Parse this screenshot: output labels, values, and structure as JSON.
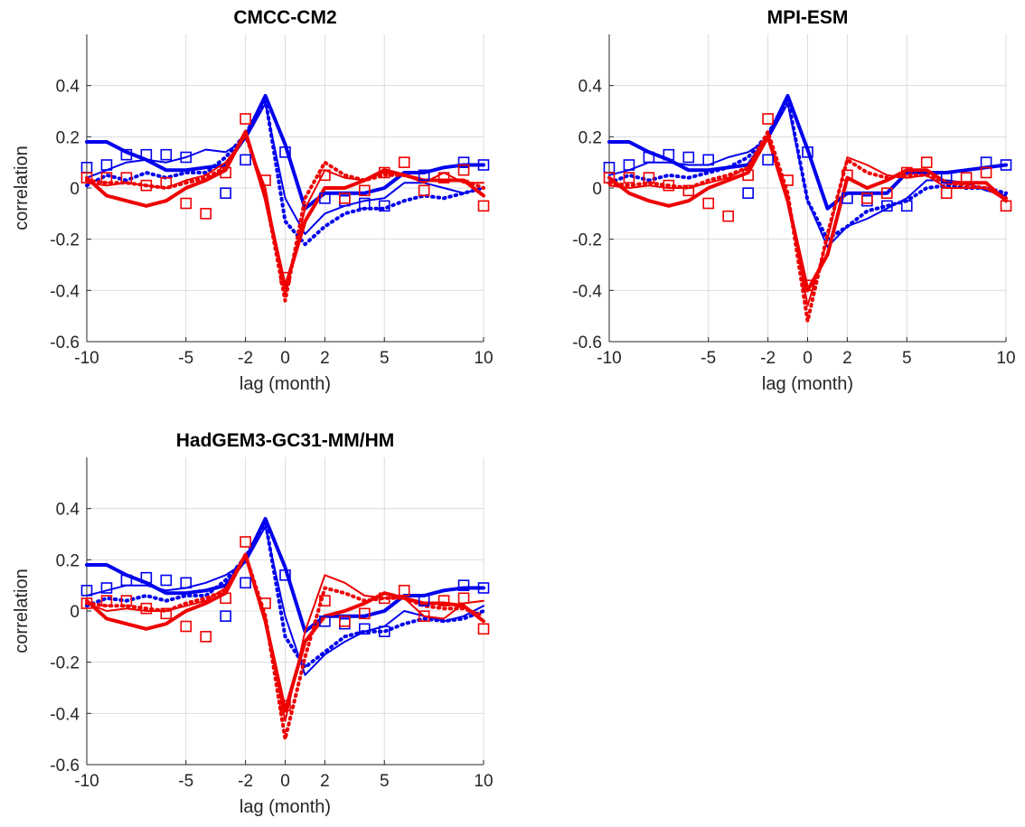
{
  "chart_data": [
    {
      "type": "line",
      "title": "CMCC-CM2",
      "xlabel": "lag (month)",
      "ylabel": "correlation",
      "xlim": [
        -10,
        10
      ],
      "ylim": [
        -0.6,
        0.6
      ],
      "xticks": [
        "-10",
        "-5",
        "-2",
        "0",
        "2",
        "5",
        "10"
      ],
      "yticks": [
        "-0.6",
        "-0.4",
        "-0.2",
        "0",
        "0.2",
        "0.4"
      ],
      "grid": true,
      "x": [
        -10,
        -9,
        -8,
        -7,
        -6,
        -5,
        -4,
        -3,
        -2,
        -1,
        0,
        1,
        2,
        3,
        4,
        5,
        6,
        7,
        8,
        9,
        10
      ],
      "series": [
        {
          "style": "thick",
          "color": "#0000ee",
          "values": [
            0.18,
            0.18,
            0.14,
            0.11,
            0.07,
            0.07,
            0.08,
            0.09,
            0.2,
            0.36,
            0.17,
            -0.08,
            -0.02,
            -0.02,
            -0.02,
            0.0,
            0.06,
            0.06,
            0.08,
            0.09,
            0.09
          ]
        },
        {
          "style": "thin",
          "color": "#0000ee",
          "values": [
            0.04,
            0.07,
            0.1,
            0.11,
            0.1,
            0.12,
            0.15,
            0.14,
            0.19,
            0.33,
            -0.04,
            -0.18,
            -0.1,
            -0.07,
            -0.05,
            -0.04,
            0.02,
            0.02,
            0.0,
            -0.02,
            0.0
          ]
        },
        {
          "style": "dotted",
          "color": "#0000ee",
          "values": [
            0.01,
            0.05,
            0.03,
            0.06,
            0.04,
            0.06,
            0.06,
            0.12,
            0.21,
            0.35,
            -0.13,
            -0.22,
            -0.15,
            -0.1,
            -0.08,
            -0.08,
            -0.05,
            -0.03,
            -0.04,
            -0.02,
            0.0
          ]
        },
        {
          "style": "thick",
          "color": "#ee0000",
          "values": [
            0.04,
            -0.03,
            -0.05,
            -0.07,
            -0.05,
            0.0,
            0.03,
            0.07,
            0.22,
            -0.04,
            -0.39,
            -0.13,
            0.0,
            0.0,
            0.03,
            0.07,
            0.05,
            0.03,
            0.03,
            0.03,
            -0.03
          ]
        },
        {
          "style": "thin",
          "color": "#ee0000",
          "values": [
            0.02,
            0.01,
            0.02,
            0.01,
            0.0,
            0.03,
            0.05,
            0.1,
            0.2,
            0.0,
            -0.42,
            -0.08,
            0.07,
            0.04,
            0.03,
            0.06,
            0.05,
            0.02,
            0.06,
            0.02,
            0.02
          ]
        },
        {
          "style": "dotted",
          "color": "#ee0000",
          "values": [
            0.03,
            0.02,
            0.02,
            0.01,
            0.0,
            0.02,
            0.04,
            0.08,
            0.21,
            -0.03,
            -0.44,
            -0.04,
            0.1,
            0.05,
            0.03,
            0.05,
            0.05,
            0.03,
            0.03,
            0.03,
            0.0
          ]
        }
      ],
      "markers": [
        {
          "color": "#0000ee",
          "x": [
            -10,
            -9,
            -8,
            -7,
            -6,
            -5,
            -3,
            -2,
            0,
            2,
            3,
            4,
            5,
            7,
            9,
            10
          ],
          "values": [
            0.08,
            0.09,
            0.13,
            0.13,
            0.13,
            0.12,
            -0.02,
            0.11,
            0.14,
            -0.04,
            -0.05,
            -0.06,
            -0.07,
            0.05,
            0.1,
            0.09
          ]
        },
        {
          "color": "#ee0000",
          "x": [
            -10,
            -9,
            -8,
            -7,
            -6,
            -5,
            -4,
            -3,
            -2,
            -1,
            0,
            2,
            3,
            4,
            5,
            6,
            7,
            8,
            9,
            10
          ],
          "values": [
            0.04,
            0.04,
            0.04,
            0.01,
            0.02,
            -0.06,
            -0.1,
            0.06,
            0.27,
            0.03,
            -0.35,
            0.05,
            -0.04,
            -0.01,
            0.06,
            0.1,
            -0.01,
            0.04,
            0.07,
            -0.07
          ]
        }
      ]
    },
    {
      "type": "line",
      "title": "MPI-ESM",
      "xlabel": "lag (month)",
      "ylabel": "",
      "xlim": [
        -10,
        10
      ],
      "ylim": [
        -0.6,
        0.6
      ],
      "xticks": [
        "-10",
        "-5",
        "-2",
        "0",
        "2",
        "5",
        "10"
      ],
      "yticks": [
        "-0.6",
        "-0.4",
        "-0.2",
        "0",
        "0.2",
        "0.4"
      ],
      "grid": true,
      "x": [
        -10,
        -9,
        -8,
        -7,
        -6,
        -5,
        -4,
        -3,
        -2,
        -1,
        0,
        1,
        2,
        3,
        4,
        5,
        6,
        7,
        8,
        9,
        10
      ],
      "series": [
        {
          "style": "thick",
          "color": "#0000ee",
          "values": [
            0.18,
            0.18,
            0.14,
            0.11,
            0.07,
            0.07,
            0.08,
            0.09,
            0.2,
            0.36,
            0.15,
            -0.08,
            -0.02,
            -0.02,
            -0.02,
            0.06,
            0.06,
            0.06,
            0.07,
            0.08,
            0.09
          ]
        },
        {
          "style": "thin",
          "color": "#0000ee",
          "values": [
            0.05,
            0.07,
            0.1,
            0.1,
            0.09,
            0.09,
            0.12,
            0.14,
            0.19,
            0.33,
            -0.05,
            -0.23,
            -0.15,
            -0.12,
            -0.08,
            -0.04,
            0.03,
            0.03,
            0.02,
            -0.01,
            -0.03
          ]
        },
        {
          "style": "dotted",
          "color": "#0000ee",
          "values": [
            0.02,
            0.05,
            0.03,
            0.05,
            0.04,
            0.06,
            0.08,
            0.12,
            0.21,
            0.35,
            -0.05,
            -0.2,
            -0.15,
            -0.09,
            -0.07,
            -0.05,
            0.0,
            0.01,
            0.0,
            0.0,
            -0.02
          ]
        },
        {
          "style": "thick",
          "color": "#ee0000",
          "values": [
            0.04,
            -0.02,
            -0.05,
            -0.07,
            -0.05,
            0.0,
            0.03,
            0.06,
            0.2,
            -0.05,
            -0.4,
            -0.26,
            0.04,
            0.0,
            0.03,
            0.07,
            0.07,
            0.02,
            0.02,
            0.02,
            -0.05
          ]
        },
        {
          "style": "thin",
          "color": "#ee0000",
          "values": [
            0.01,
            0.0,
            0.01,
            0.0,
            0.0,
            0.02,
            0.04,
            0.08,
            0.21,
            -0.03,
            -0.46,
            -0.2,
            0.12,
            0.09,
            0.05,
            0.04,
            0.05,
            0.0,
            0.0,
            0.0,
            -0.05
          ]
        },
        {
          "style": "dotted",
          "color": "#ee0000",
          "values": [
            0.02,
            0.01,
            0.02,
            0.01,
            0.0,
            0.03,
            0.05,
            0.08,
            0.22,
            -0.02,
            -0.52,
            -0.18,
            0.11,
            0.06,
            0.04,
            0.05,
            0.05,
            0.02,
            0.01,
            0.0,
            -0.04
          ]
        }
      ],
      "markers": [
        {
          "color": "#0000ee",
          "x": [
            -10,
            -9,
            -8,
            -7,
            -6,
            -5,
            -3,
            -2,
            0,
            2,
            3,
            4,
            5,
            7,
            9,
            10
          ],
          "values": [
            0.08,
            0.09,
            0.12,
            0.13,
            0.12,
            0.11,
            -0.02,
            0.11,
            0.14,
            -0.04,
            -0.05,
            -0.07,
            -0.07,
            0.04,
            0.1,
            0.09
          ]
        },
        {
          "color": "#ee0000",
          "x": [
            -10,
            -9,
            -8,
            -7,
            -6,
            -5,
            -4,
            -3,
            -2,
            -1,
            0,
            2,
            3,
            4,
            5,
            6,
            7,
            8,
            9,
            10
          ],
          "values": [
            0.04,
            0.04,
            0.04,
            0.01,
            -0.01,
            -0.06,
            -0.11,
            0.05,
            0.27,
            0.03,
            -0.38,
            0.05,
            -0.04,
            -0.02,
            0.06,
            0.1,
            -0.02,
            0.04,
            0.06,
            -0.07
          ]
        }
      ]
    },
    {
      "type": "line",
      "title": "HadGEM3-GC31-MM/HM",
      "xlabel": "lag (month)",
      "ylabel": "correlation",
      "xlim": [
        -10,
        10
      ],
      "ylim": [
        -0.6,
        0.6
      ],
      "xticks": [
        "-10",
        "-5",
        "-2",
        "0",
        "2",
        "5",
        "10"
      ],
      "yticks": [
        "-0.6",
        "-0.4",
        "-0.2",
        "0",
        "0.2",
        "0.4"
      ],
      "grid": true,
      "x": [
        -10,
        -9,
        -8,
        -7,
        -6,
        -5,
        -4,
        -3,
        -2,
        -1,
        0,
        1,
        2,
        3,
        4,
        5,
        6,
        7,
        8,
        9,
        10
      ],
      "series": [
        {
          "style": "thick",
          "color": "#0000ee",
          "values": [
            0.18,
            0.18,
            0.14,
            0.11,
            0.07,
            0.07,
            0.08,
            0.1,
            0.2,
            0.36,
            0.17,
            -0.08,
            -0.02,
            -0.02,
            -0.02,
            0.0,
            0.06,
            0.06,
            0.08,
            0.09,
            0.09
          ]
        },
        {
          "style": "thin",
          "color": "#0000ee",
          "values": [
            0.06,
            0.08,
            0.1,
            0.1,
            0.08,
            0.09,
            0.11,
            0.14,
            0.19,
            0.33,
            -0.02,
            -0.25,
            -0.17,
            -0.12,
            -0.08,
            -0.06,
            0.0,
            -0.02,
            -0.04,
            -0.02,
            0.02
          ]
        },
        {
          "style": "dotted",
          "color": "#0000ee",
          "values": [
            0.02,
            0.05,
            0.04,
            0.06,
            0.04,
            0.06,
            0.06,
            0.12,
            0.21,
            0.35,
            -0.1,
            -0.22,
            -0.16,
            -0.1,
            -0.08,
            -0.08,
            -0.05,
            -0.03,
            -0.04,
            -0.03,
            0.0
          ]
        },
        {
          "style": "thick",
          "color": "#ee0000",
          "values": [
            0.04,
            -0.03,
            -0.05,
            -0.07,
            -0.05,
            0.0,
            0.03,
            0.07,
            0.22,
            -0.04,
            -0.39,
            -0.12,
            -0.02,
            0.0,
            0.03,
            0.07,
            0.05,
            0.03,
            0.03,
            0.02,
            -0.04
          ]
        },
        {
          "style": "thin",
          "color": "#ee0000",
          "values": [
            0.03,
            0.0,
            0.01,
            0.0,
            0.0,
            0.02,
            0.04,
            0.09,
            0.21,
            -0.02,
            -0.43,
            -0.08,
            0.14,
            0.11,
            0.06,
            0.05,
            0.05,
            -0.02,
            -0.03,
            0.03,
            0.04
          ]
        },
        {
          "style": "dotted",
          "color": "#ee0000",
          "values": [
            0.03,
            0.02,
            0.02,
            0.01,
            0.0,
            0.03,
            0.05,
            0.08,
            0.22,
            -0.02,
            -0.5,
            -0.18,
            0.09,
            0.07,
            0.04,
            0.05,
            0.05,
            0.02,
            0.01,
            0.01,
            -0.02
          ]
        }
      ],
      "markers": [
        {
          "color": "#0000ee",
          "x": [
            -10,
            -9,
            -8,
            -7,
            -6,
            -5,
            -3,
            -2,
            0,
            2,
            3,
            4,
            5,
            7,
            9,
            10
          ],
          "values": [
            0.08,
            0.09,
            0.12,
            0.13,
            0.12,
            0.11,
            -0.02,
            0.11,
            0.14,
            -0.04,
            -0.05,
            -0.07,
            -0.08,
            0.04,
            0.1,
            0.09
          ]
        },
        {
          "color": "#ee0000",
          "x": [
            -10,
            -9,
            -8,
            -7,
            -6,
            -5,
            -4,
            -3,
            -2,
            -1,
            0,
            2,
            3,
            4,
            5,
            6,
            7,
            8,
            9,
            10
          ],
          "values": [
            0.03,
            0.04,
            0.04,
            0.01,
            -0.01,
            -0.06,
            -0.1,
            0.05,
            0.27,
            0.03,
            -0.37,
            0.04,
            -0.04,
            -0.01,
            0.05,
            0.08,
            -0.02,
            0.04,
            0.05,
            -0.07
          ]
        }
      ]
    }
  ]
}
